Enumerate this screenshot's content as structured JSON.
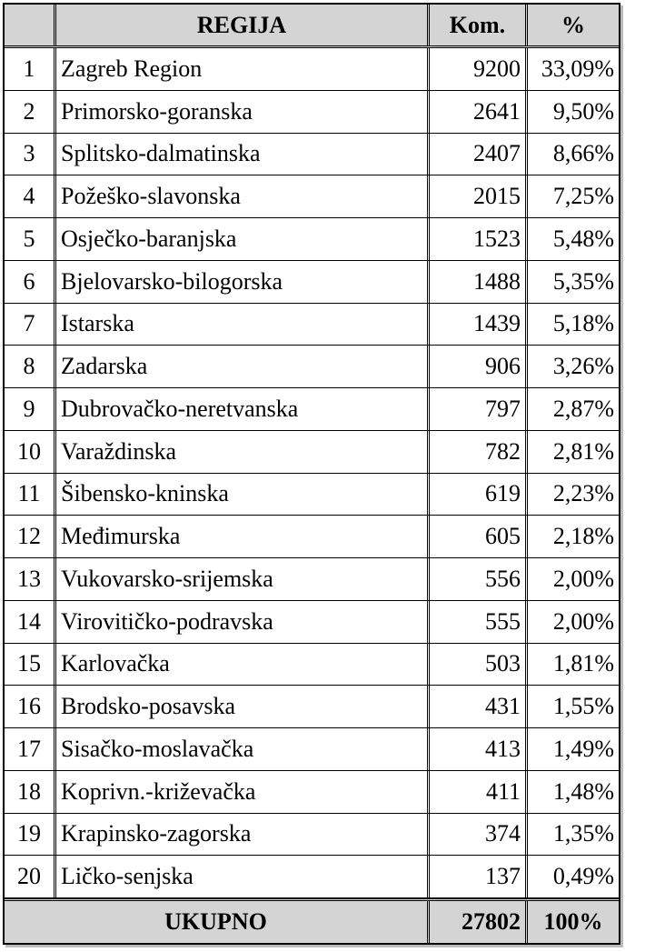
{
  "table": {
    "headers": [
      "REGIJA",
      "Kom.",
      "%"
    ],
    "rows": [
      [
        "1",
        "Zagreb Region",
        "9200",
        "33,09%"
      ],
      [
        "2",
        "Primorsko-goranska",
        "2641",
        "9,50%"
      ],
      [
        "3",
        "Splitsko-dalmatinska",
        "2407",
        "8,66%"
      ],
      [
        "4",
        "Požeško-slavonska",
        "2015",
        "7,25%"
      ],
      [
        "5",
        "Osječko-baranjska",
        "1523",
        "5,48%"
      ],
      [
        "6",
        "Bjelovarsko-bilogorska",
        "1488",
        "5,35%"
      ],
      [
        "7",
        "Istarska",
        "1439",
        "5,18%"
      ],
      [
        "8",
        "Zadarska",
        "906",
        "3,26%"
      ],
      [
        "9",
        "Dubrovačko-neretvanska",
        "797",
        "2,87%"
      ],
      [
        "10",
        "Varaždinska",
        "782",
        "2,81%"
      ],
      [
        "11",
        "Šibensko-kninska",
        "619",
        "2,23%"
      ],
      [
        "12",
        "Međimurska",
        "605",
        "2,18%"
      ],
      [
        "13",
        "Vukovarsko-srijemska",
        "556",
        "2,00%"
      ],
      [
        "14",
        "Virovitičko-podravska",
        "555",
        "2,00%"
      ],
      [
        "15",
        "Karlovačka",
        "503",
        "1,81%"
      ],
      [
        "16",
        "Brodsko-posavska",
        "431",
        "1,55%"
      ],
      [
        "17",
        "Sisačko-moslavačka",
        "413",
        "1,49%"
      ],
      [
        "18",
        "Koprivn.-križevačka",
        "411",
        "1,48%"
      ],
      [
        "19",
        "Krapinsko-zagorska",
        "374",
        "1,35%"
      ],
      [
        "20",
        "Ličko-senjska",
        "137",
        "0,49%"
      ]
    ],
    "footer": [
      "UKUPNO",
      "27802",
      "100%"
    ]
  }
}
